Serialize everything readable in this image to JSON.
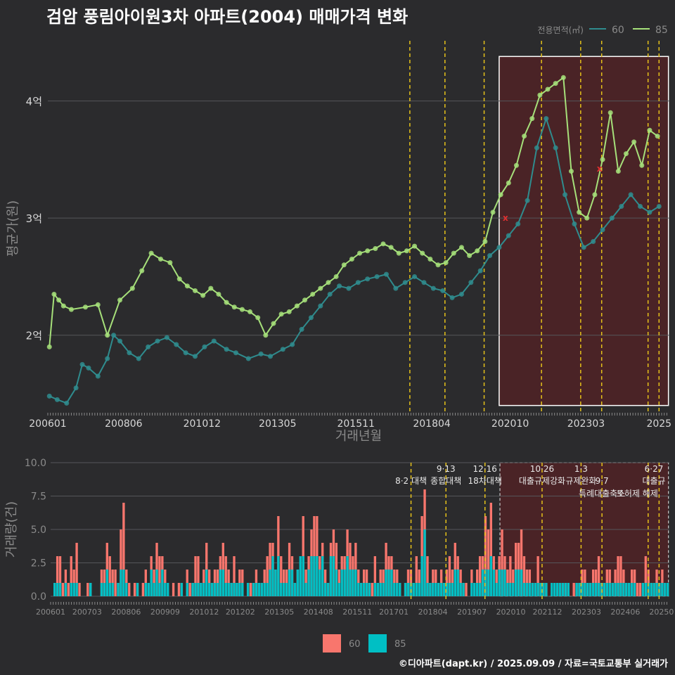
{
  "title": "검암 풍림아이원3차 아파트(2004) 매매가격 변화",
  "caption": "©디아파트(dapt.kr) / 2025.09.09 / 자료=국토교통부 실거래가",
  "colors": {
    "bg": "#2b2b2d",
    "grid": "#55565a",
    "text": "#d8d8d8",
    "muted": "#8a8a8a",
    "s60_line": "#2f8c8e",
    "s85_line": "#a6e07a",
    "bar60": "#f8766d",
    "bar85": "#00bfc4",
    "vline": "#e6c21a",
    "highlight": "#4a2326",
    "box": "#ffffff"
  },
  "chart_data": [
    {
      "type": "line",
      "title": "",
      "xlabel": "거래년월",
      "ylabel": "평균가(원)",
      "y_unit": "억",
      "ylim": [
        1.35,
        4.55
      ],
      "yticks": [
        {
          "v": 2,
          "label": "2억"
        },
        {
          "v": 3,
          "label": "3억"
        },
        {
          "v": 4,
          "label": "4억"
        }
      ],
      "xlim": [
        2006.0,
        2025.83
      ],
      "xticks": [
        {
          "v": 2006.0,
          "label": "200601"
        },
        {
          "v": 2008.42,
          "label": "200806"
        },
        {
          "v": 2010.92,
          "label": "201012"
        },
        {
          "v": 2013.33,
          "label": "201305"
        },
        {
          "v": 2015.83,
          "label": "201511"
        },
        {
          "v": 2018.25,
          "label": "201804"
        },
        {
          "v": 2020.75,
          "label": "202010"
        },
        {
          "v": 2023.17,
          "label": "202303"
        },
        {
          "v": 2025.5,
          "label": "2025"
        }
      ],
      "legend": {
        "title": "전용면적(㎡)",
        "position": "top-right",
        "entries": [
          "60",
          "85"
        ]
      },
      "highlight": {
        "x0": 2020.4,
        "x1": 2025.8
      },
      "vlines": [
        2017.55,
        2018.67,
        2019.92,
        2021.75,
        2023.0,
        2023.67,
        2025.15,
        2025.5
      ],
      "series": [
        {
          "name": "60",
          "x": [
            2006.05,
            2006.3,
            2006.6,
            2006.9,
            2007.1,
            2007.3,
            2007.6,
            2007.9,
            2008.1,
            2008.3,
            2008.6,
            2008.9,
            2009.2,
            2009.5,
            2009.8,
            2010.1,
            2010.4,
            2010.7,
            2011.0,
            2011.3,
            2011.7,
            2012.0,
            2012.4,
            2012.8,
            2013.1,
            2013.5,
            2013.8,
            2014.1,
            2014.4,
            2014.7,
            2015.0,
            2015.3,
            2015.6,
            2015.9,
            2016.2,
            2016.5,
            2016.8,
            2017.1,
            2017.4,
            2017.7,
            2018.0,
            2018.3,
            2018.6,
            2018.9,
            2019.2,
            2019.5,
            2019.8,
            2020.1,
            2020.4,
            2020.7,
            2021.0,
            2021.3,
            2021.6,
            2021.9,
            2022.2,
            2022.5,
            2022.8,
            2023.1,
            2023.4,
            2023.7,
            2024.0,
            2024.3,
            2024.6,
            2024.9,
            2025.2,
            2025.5
          ],
          "values": [
            1.48,
            1.45,
            1.42,
            1.55,
            1.75,
            1.72,
            1.65,
            1.8,
            2.0,
            1.95,
            1.85,
            1.8,
            1.9,
            1.95,
            1.98,
            1.92,
            1.85,
            1.82,
            1.9,
            1.95,
            1.88,
            1.85,
            1.8,
            1.84,
            1.82,
            1.88,
            1.92,
            2.05,
            2.15,
            2.25,
            2.35,
            2.42,
            2.4,
            2.45,
            2.48,
            2.5,
            2.52,
            2.4,
            2.45,
            2.5,
            2.45,
            2.4,
            2.38,
            2.32,
            2.35,
            2.45,
            2.55,
            2.68,
            2.75,
            2.85,
            2.95,
            3.15,
            3.6,
            3.85,
            3.6,
            3.2,
            2.95,
            2.75,
            2.8,
            2.9,
            3.0,
            3.1,
            3.2,
            3.1,
            3.05,
            3.1
          ]
        },
        {
          "name": "85",
          "x": [
            2006.05,
            2006.2,
            2006.35,
            2006.5,
            2006.75,
            2007.2,
            2007.6,
            2007.9,
            2008.3,
            2008.7,
            2009.0,
            2009.3,
            2009.6,
            2009.9,
            2010.2,
            2010.45,
            2010.7,
            2010.95,
            2011.2,
            2011.45,
            2011.7,
            2011.95,
            2012.2,
            2012.45,
            2012.7,
            2012.95,
            2013.2,
            2013.45,
            2013.7,
            2013.95,
            2014.2,
            2014.45,
            2014.7,
            2014.95,
            2015.2,
            2015.45,
            2015.7,
            2015.95,
            2016.2,
            2016.45,
            2016.7,
            2016.95,
            2017.2,
            2017.45,
            2017.7,
            2017.95,
            2018.2,
            2018.45,
            2018.7,
            2018.95,
            2019.2,
            2019.45,
            2019.7,
            2019.95,
            2020.2,
            2020.45,
            2020.7,
            2020.95,
            2021.2,
            2021.45,
            2021.7,
            2021.95,
            2022.2,
            2022.45,
            2022.7,
            2022.95,
            2023.2,
            2023.45,
            2023.7,
            2023.95,
            2024.2,
            2024.45,
            2024.7,
            2024.95,
            2025.2,
            2025.45
          ],
          "values": [
            1.9,
            2.35,
            2.3,
            2.25,
            2.22,
            2.24,
            2.26,
            2.0,
            2.3,
            2.4,
            2.55,
            2.7,
            2.65,
            2.62,
            2.48,
            2.42,
            2.38,
            2.34,
            2.4,
            2.35,
            2.28,
            2.24,
            2.22,
            2.2,
            2.15,
            2.0,
            2.1,
            2.18,
            2.2,
            2.25,
            2.3,
            2.35,
            2.4,
            2.45,
            2.5,
            2.6,
            2.65,
            2.7,
            2.72,
            2.74,
            2.78,
            2.75,
            2.7,
            2.72,
            2.76,
            2.7,
            2.65,
            2.6,
            2.62,
            2.7,
            2.75,
            2.68,
            2.72,
            2.8,
            3.05,
            3.2,
            3.3,
            3.45,
            3.7,
            3.85,
            4.05,
            4.1,
            4.15,
            4.2,
            3.4,
            3.05,
            3.0,
            3.2,
            3.5,
            3.9,
            3.4,
            3.55,
            3.65,
            3.45,
            3.75,
            3.7
          ]
        }
      ],
      "markers": [
        {
          "x": 2020.6,
          "y": 3.0,
          "label": "x"
        },
        {
          "x": 2023.6,
          "y": 3.42,
          "label": "x"
        }
      ]
    },
    {
      "type": "bar",
      "title": "",
      "xlabel": "",
      "ylabel": "거래량(건)",
      "ylim": [
        0,
        10
      ],
      "yticks": [
        {
          "v": 0,
          "label": "0.0"
        },
        {
          "v": 2.5,
          "label": "2.5"
        },
        {
          "v": 5,
          "label": "5.0"
        },
        {
          "v": 7.5,
          "label": "7.5"
        },
        {
          "v": 10,
          "label": "10.0"
        }
      ],
      "xticks": [
        {
          "v": 2006.0,
          "label": "200601"
        },
        {
          "v": 2007.17,
          "label": "200703"
        },
        {
          "v": 2008.42,
          "label": "200806"
        },
        {
          "v": 2009.67,
          "label": "200909"
        },
        {
          "v": 2010.92,
          "label": "201012"
        },
        {
          "v": 2012.08,
          "label": "201202"
        },
        {
          "v": 2013.33,
          "label": "201305"
        },
        {
          "v": 2014.58,
          "label": "201408"
        },
        {
          "v": 2015.83,
          "label": "201511"
        },
        {
          "v": 2017.0,
          "label": "201701"
        },
        {
          "v": 2018.25,
          "label": "201804"
        },
        {
          "v": 2019.5,
          "label": "201907"
        },
        {
          "v": 2020.75,
          "label": "202010"
        },
        {
          "v": 2021.92,
          "label": "202112"
        },
        {
          "v": 2023.17,
          "label": "202303"
        },
        {
          "v": 2024.42,
          "label": "202406"
        },
        {
          "v": 2025.58,
          "label": "20250"
        }
      ],
      "legend": {
        "position": "bottom",
        "entries": [
          "60",
          "85"
        ]
      },
      "highlight": {
        "x0": 2020.4,
        "x1": 2025.8
      },
      "vlines": [
        2017.55,
        2018.67,
        2019.92,
        2021.75,
        2023.0,
        2023.67,
        2025.15,
        2025.5
      ],
      "annotations": [
        {
          "x": 2017.55,
          "row": 1,
          "text": "8·2 대책"
        },
        {
          "x": 2018.67,
          "row": 0,
          "text": "9·13"
        },
        {
          "x": 2018.67,
          "row": 1,
          "text": "종합대책"
        },
        {
          "x": 2019.92,
          "row": 0,
          "text": "12·16"
        },
        {
          "x": 2019.92,
          "row": 1,
          "text": "18차대책"
        },
        {
          "x": 2021.75,
          "row": 0,
          "text": "10·26"
        },
        {
          "x": 2021.75,
          "row": 1,
          "text": "대출규제강화"
        },
        {
          "x": 2023.0,
          "row": 0,
          "text": "1·3"
        },
        {
          "x": 2023.0,
          "row": 1,
          "text": "규제완화"
        },
        {
          "x": 2023.67,
          "row": 1,
          "text": "9·7"
        },
        {
          "x": 2023.67,
          "row": 2,
          "text": "특례대출축소"
        },
        {
          "x": 2024.8,
          "row": 2,
          "text": "토허제 해제"
        },
        {
          "x": 2025.5,
          "row": 0,
          "text": "6·27"
        },
        {
          "x": 2025.5,
          "row": 1,
          "text": "대출규"
        }
      ],
      "series": [
        {
          "name": "60",
          "values": [
            1,
            3,
            3,
            1,
            2,
            1,
            3,
            2,
            4,
            1,
            0,
            0,
            1,
            1,
            0,
            0,
            0,
            2,
            2,
            4,
            3,
            2,
            2,
            1,
            5,
            7,
            2,
            1,
            0,
            1,
            1,
            0,
            1,
            2,
            1,
            3,
            2,
            4,
            3,
            3,
            2,
            1,
            0,
            1,
            0,
            1,
            1,
            0,
            2,
            1,
            1,
            3,
            3,
            1,
            2,
            4,
            2,
            1,
            2,
            2,
            3,
            4,
            3,
            2,
            1,
            3,
            1,
            2,
            2,
            0,
            1,
            1,
            1,
            2,
            1,
            1,
            2,
            3,
            4,
            4,
            2,
            6,
            3,
            2,
            2,
            4,
            3,
            1,
            2,
            2,
            6,
            2,
            3,
            5,
            6,
            6,
            3,
            4,
            2,
            1,
            4,
            5,
            4,
            2,
            3,
            3,
            5,
            4,
            3,
            4,
            2,
            1,
            2,
            2,
            1,
            1,
            3,
            1,
            2,
            2,
            4,
            3,
            3,
            2,
            2,
            1,
            0,
            1,
            2,
            2,
            1,
            3,
            2,
            6,
            8,
            3,
            1,
            2,
            2,
            1,
            2,
            1,
            2,
            3,
            2,
            4,
            3,
            2,
            1,
            1,
            0,
            2,
            1,
            2,
            3,
            3,
            6,
            5,
            7,
            3,
            2,
            3,
            5,
            3,
            2,
            3,
            2,
            4,
            4,
            5,
            3,
            2,
            2,
            1,
            1,
            3,
            1,
            1,
            1,
            0,
            0,
            0,
            1,
            0,
            1,
            1,
            1,
            0,
            1,
            1,
            1,
            2,
            2,
            1,
            1,
            2,
            2,
            3,
            1,
            1,
            2,
            2,
            1,
            2,
            3,
            3,
            2,
            1,
            1,
            2,
            2,
            1,
            1,
            0,
            3,
            2,
            1,
            1,
            2,
            1,
            2,
            1,
            1
          ]
        },
        {
          "name": "85",
          "values": [
            1,
            1,
            1,
            0,
            1,
            0,
            1,
            1,
            1,
            0,
            0,
            0,
            0,
            1,
            0,
            0,
            0,
            1,
            1,
            2,
            1,
            1,
            0,
            1,
            2,
            2,
            1,
            0,
            0,
            0,
            1,
            0,
            0,
            1,
            1,
            2,
            1,
            2,
            1,
            2,
            1,
            1,
            0,
            0,
            0,
            0,
            1,
            0,
            1,
            0,
            1,
            1,
            1,
            1,
            1,
            2,
            1,
            1,
            1,
            1,
            2,
            2,
            1,
            1,
            1,
            1,
            1,
            1,
            1,
            0,
            1,
            0,
            1,
            1,
            1,
            1,
            1,
            1,
            2,
            3,
            2,
            3,
            1,
            1,
            1,
            2,
            2,
            1,
            2,
            3,
            3,
            1,
            2,
            3,
            3,
            3,
            2,
            3,
            1,
            1,
            3,
            3,
            2,
            1,
            2,
            2,
            3,
            2,
            2,
            2,
            1,
            1,
            1,
            1,
            1,
            0,
            1,
            1,
            1,
            1,
            2,
            2,
            2,
            1,
            1,
            1,
            0,
            1,
            1,
            1,
            1,
            1,
            1,
            3,
            5,
            1,
            1,
            1,
            1,
            1,
            1,
            1,
            1,
            1,
            1,
            2,
            2,
            1,
            1,
            0,
            0,
            1,
            1,
            1,
            1,
            2,
            2,
            2,
            3,
            2,
            1,
            2,
            2,
            2,
            1,
            1,
            1,
            2,
            2,
            2,
            1,
            1,
            1,
            1,
            1,
            1,
            1,
            1,
            1,
            0,
            1,
            1,
            1,
            1,
            1,
            1,
            1,
            0,
            0,
            1,
            1,
            1,
            1,
            1,
            1,
            1,
            1,
            1,
            1,
            1,
            1,
            1,
            1,
            1,
            1,
            1,
            1,
            1,
            1,
            1,
            1,
            0,
            0,
            1,
            1,
            1,
            1,
            1,
            1,
            1,
            1,
            1,
            1
          ]
        }
      ]
    }
  ]
}
